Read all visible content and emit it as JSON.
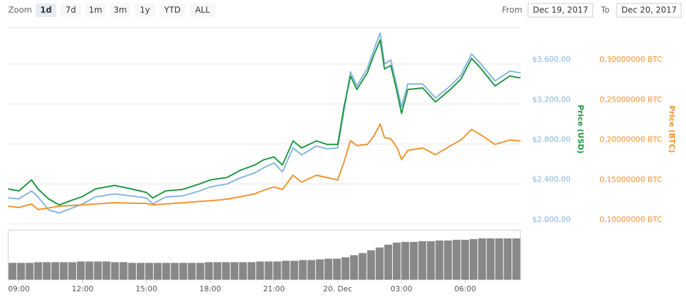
{
  "controls": {
    "zoom_label": "Zoom",
    "zoom_buttons": [
      "1d",
      "7d",
      "1m",
      "3m",
      "1y",
      "YTD",
      "ALL"
    ],
    "selected_zoom": 0,
    "from_label": "From",
    "from_value": "Dec 19, 2017",
    "to_label": "To",
    "to_value": "Dec 20, 2017"
  },
  "chart_data": {
    "type": "line",
    "ylabel": "Price (USD)",
    "y2label": "Price (BTC)",
    "x": [
      -0.5,
      0,
      0.6,
      0.9,
      1.4,
      1.9,
      2.4,
      3,
      3.6,
      4.5,
      5.3,
      6,
      6.3,
      6.9,
      7.7,
      8.5,
      9,
      9.8,
      10.4,
      11.1,
      11.5,
      12,
      12.4,
      12.9,
      13.3,
      14,
      14.5,
      15,
      15.3,
      15.6,
      15.9,
      16.4,
      16.7,
      17,
      17.2,
      17.5,
      17.8,
      18,
      18.3,
      19,
      19.6,
      20.3,
      20.8,
      21.3,
      21.7,
      22.4,
      23.1,
      23.6
    ],
    "xlim": [
      -0.5,
      23.6
    ],
    "xticks": [
      {
        "value": 0,
        "label": "09:00"
      },
      {
        "value": 3,
        "label": "12:00"
      },
      {
        "value": 6,
        "label": "15:00"
      },
      {
        "value": 9,
        "label": "18:00"
      },
      {
        "value": 12,
        "label": "21:00"
      },
      {
        "value": 15,
        "label": "20. Dec"
      },
      {
        "value": 18,
        "label": "03:00"
      },
      {
        "value": 21,
        "label": "06:00"
      }
    ],
    "ylim": [
      1965,
      3965
    ],
    "yticks": [
      {
        "value": 2000,
        "label": "$2.000,00"
      },
      {
        "value": 2400,
        "label": "$2.400,00"
      },
      {
        "value": 2800,
        "label": "$2.800,00"
      },
      {
        "value": 3200,
        "label": "$3.200,00"
      },
      {
        "value": 3600,
        "label": "$3.600,00"
      }
    ],
    "y2lim": [
      0.0957,
      0.3457
    ],
    "y2ticks": [
      {
        "value": 0.1,
        "label": "0,10000000 BTC"
      },
      {
        "value": 0.15,
        "label": "0,15000000 BTC"
      },
      {
        "value": 0.2,
        "label": "0,20000000 BTC"
      },
      {
        "value": 0.25,
        "label": "0,25000000 BTC"
      },
      {
        "value": 0.3,
        "label": "0,30000000 BTC"
      }
    ],
    "grid": true,
    "series": [
      {
        "color": "#86b5e3",
        "values": [
          2260,
          2250,
          2330,
          2270,
          2140,
          2110,
          2150,
          2200,
          2270,
          2300,
          2280,
          2260,
          2200,
          2270,
          2280,
          2330,
          2370,
          2400,
          2460,
          2510,
          2560,
          2610,
          2520,
          2760,
          2690,
          2780,
          2750,
          2760,
          3140,
          3520,
          3380,
          3560,
          3740,
          3910,
          3600,
          3640,
          3360,
          3170,
          3400,
          3400,
          3260,
          3380,
          3490,
          3700,
          3610,
          3430,
          3530,
          3510
        ]
      },
      {
        "color": "#1e9640",
        "values": [
          2350,
          2330,
          2440,
          2350,
          2250,
          2190,
          2230,
          2275,
          2350,
          2385,
          2350,
          2315,
          2260,
          2330,
          2345,
          2400,
          2440,
          2465,
          2535,
          2590,
          2640,
          2670,
          2590,
          2830,
          2760,
          2830,
          2795,
          2795,
          3175,
          3480,
          3345,
          3515,
          3690,
          3840,
          3550,
          3585,
          3310,
          3105,
          3345,
          3360,
          3220,
          3345,
          3450,
          3655,
          3565,
          3380,
          3480,
          3460
        ]
      },
      {
        "color": "#f0922b",
        "axis": "y2",
        "values": [
          0.1223,
          0.1206,
          0.125,
          0.118,
          0.12,
          0.1223,
          0.123,
          0.124,
          0.125,
          0.1266,
          0.126,
          0.1257,
          0.124,
          0.125,
          0.1265,
          0.1283,
          0.129,
          0.131,
          0.134,
          0.1377,
          0.142,
          0.1463,
          0.143,
          0.161,
          0.1523,
          0.161,
          0.158,
          0.155,
          0.178,
          0.204,
          0.198,
          0.1995,
          0.21,
          0.225,
          0.208,
          0.2064,
          0.195,
          0.1806,
          0.192,
          0.195,
          0.1867,
          0.1978,
          0.205,
          0.2184,
          0.212,
          0.1995,
          0.205,
          0.2038
        ]
      }
    ],
    "volume": {
      "color": "#888888",
      "values": [
        24,
        24,
        24,
        25,
        25,
        25,
        25,
        25,
        26,
        26,
        26,
        26,
        25,
        25,
        24,
        24,
        24,
        24,
        24,
        24,
        24,
        24,
        24,
        25,
        25,
        25,
        25,
        25,
        25,
        26,
        26,
        26,
        27,
        27,
        28,
        28,
        29,
        30,
        30,
        32,
        35,
        38,
        42,
        46,
        50,
        53,
        54,
        54,
        55,
        55,
        56,
        56,
        57,
        57,
        58,
        59,
        59,
        59,
        59,
        59
      ]
    }
  }
}
